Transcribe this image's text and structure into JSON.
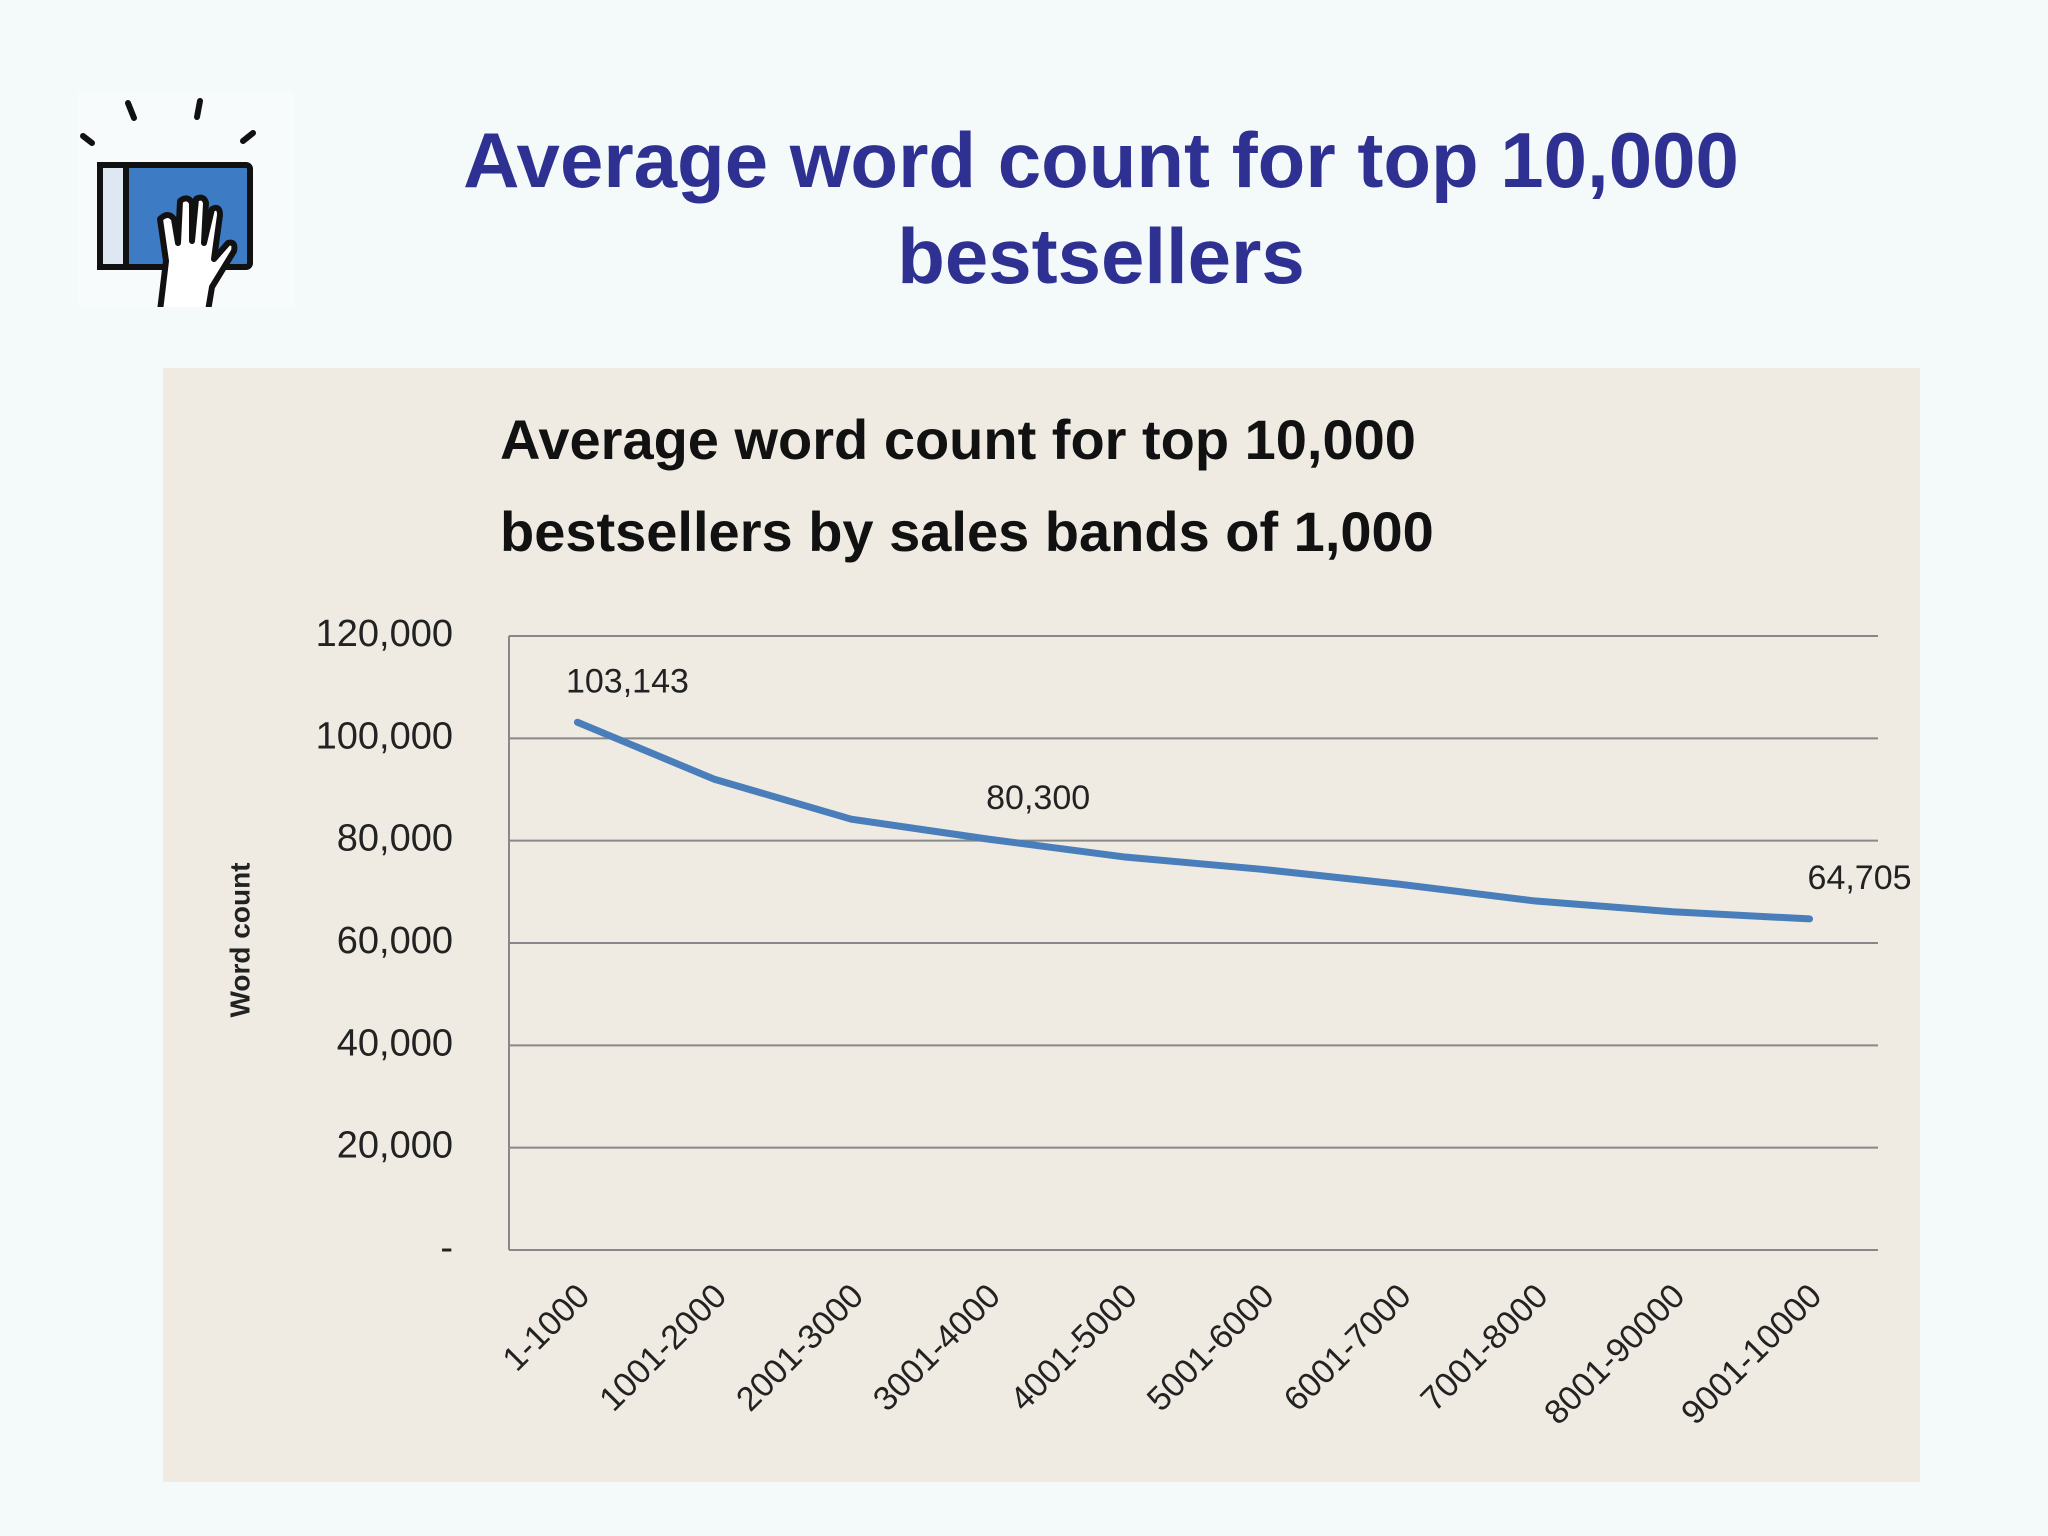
{
  "slide": {
    "title": "Average word count for top 10,000 bestsellers"
  },
  "chart_data": {
    "type": "line",
    "title": "Average word count for top 10,000 bestsellers by sales bands of 1,000",
    "y_label": "Word count",
    "categories": [
      "1-1000",
      "1001-2000",
      "2001-3000",
      "3001-4000",
      "4001-5000",
      "5001-6000",
      "6001-7000",
      "7001-8000",
      "8001-90000",
      "9001-10000"
    ],
    "values": [
      103143,
      92000,
      84200,
      80300,
      76800,
      74400,
      71500,
      68200,
      66100,
      64705
    ],
    "value_labels": [
      "103,143",
      null,
      null,
      "80,300",
      null,
      null,
      null,
      null,
      null,
      "64,705"
    ],
    "color": "#4a7ebb",
    "ylim": [
      0,
      120000
    ],
    "yticks": [
      {
        "value": 0,
        "label": "-"
      },
      {
        "value": 20000,
        "label": "20,000"
      },
      {
        "value": 40000,
        "label": "40,000"
      },
      {
        "value": 60000,
        "label": "60,000"
      },
      {
        "value": 80000,
        "label": "80,000"
      },
      {
        "value": 100000,
        "label": "100,000"
      },
      {
        "value": 120000,
        "label": "120,000"
      }
    ],
    "grid": true
  }
}
